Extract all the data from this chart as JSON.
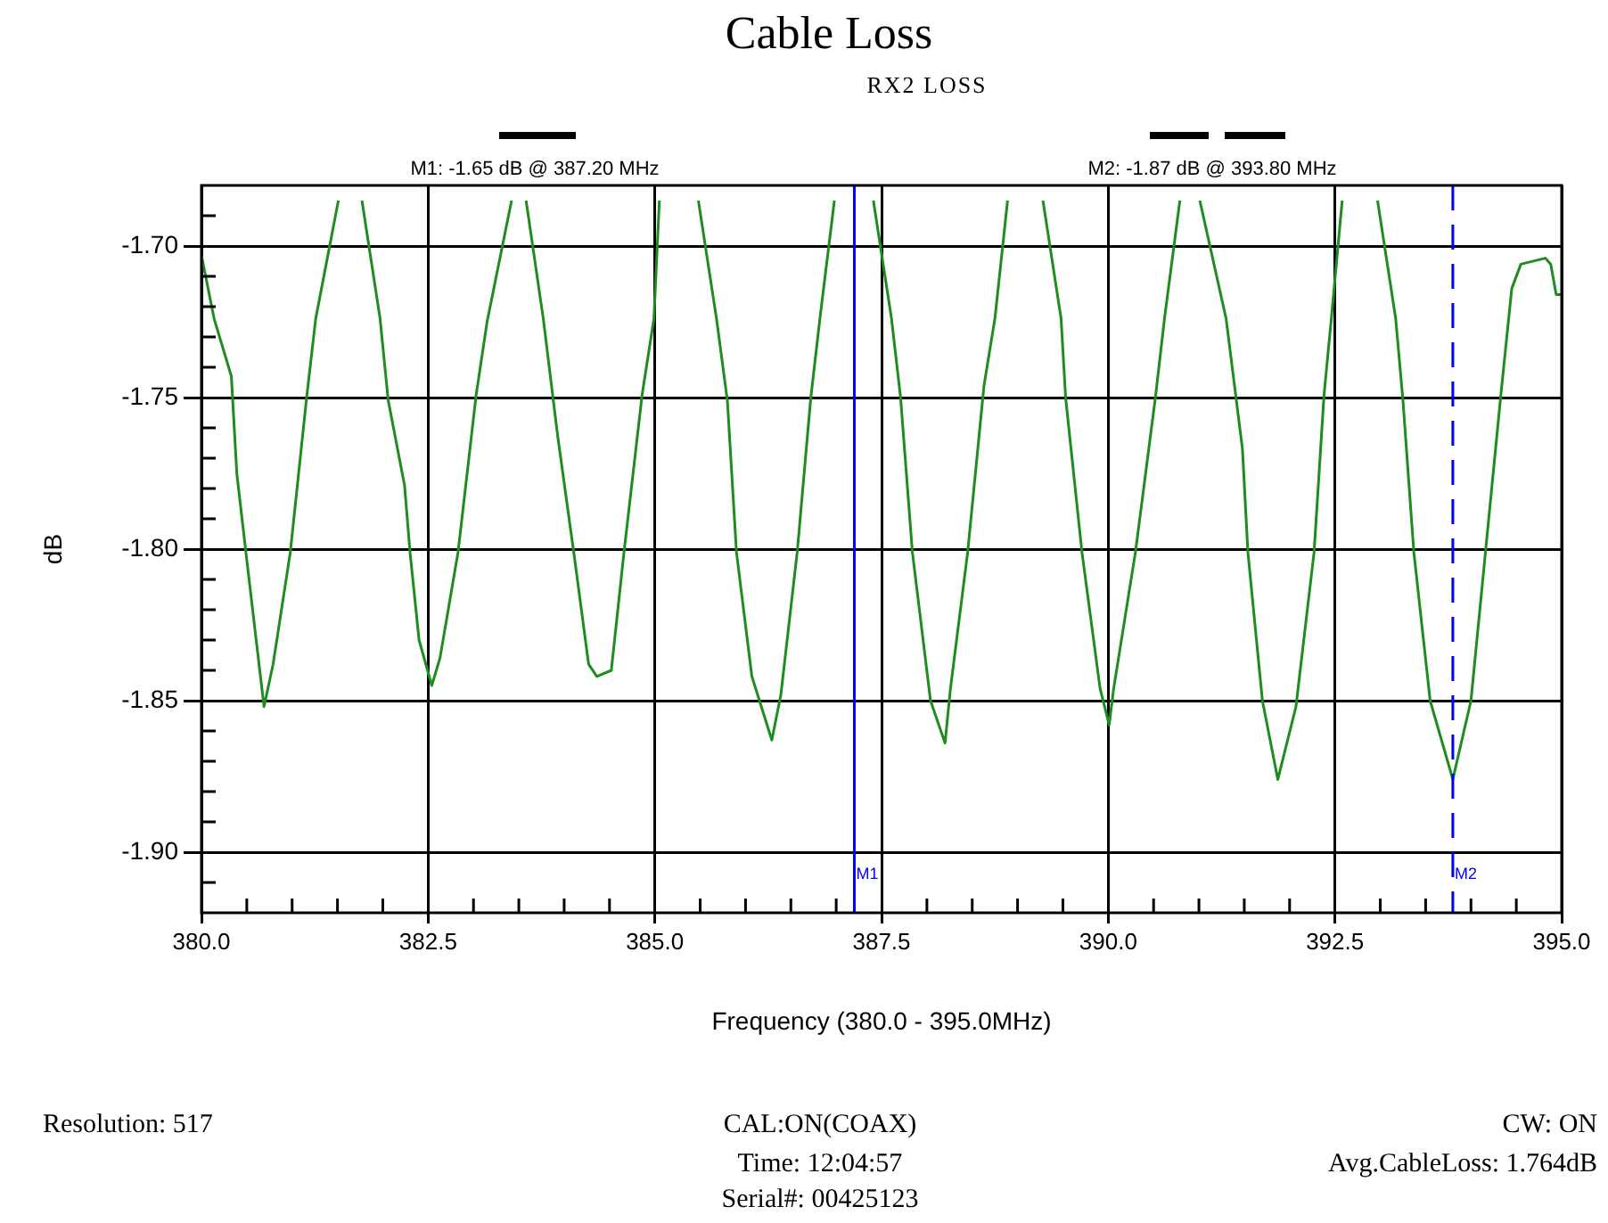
{
  "chart_data": {
    "type": "line",
    "title": "Cable Loss",
    "subtitle": "RX2 LOSS",
    "xlabel": "Frequency (380.0 - 395.0MHz)",
    "ylabel": "dB",
    "xlim": [
      380,
      395
    ],
    "xticks": [
      {
        "value": 380,
        "label": "380.0"
      },
      {
        "value": 380.5,
        "label": null
      },
      {
        "value": 381,
        "label": null
      },
      {
        "value": 381.5,
        "label": null
      },
      {
        "value": 382,
        "label": null
      },
      {
        "value": 382.5,
        "label": "382.5"
      },
      {
        "value": 383,
        "label": null
      },
      {
        "value": 383.5,
        "label": null
      },
      {
        "value": 384,
        "label": null
      },
      {
        "value": 384.5,
        "label": null
      },
      {
        "value": 385,
        "label": "385.0"
      },
      {
        "value": 385.5,
        "label": null
      },
      {
        "value": 386,
        "label": null
      },
      {
        "value": 386.5,
        "label": null
      },
      {
        "value": 387,
        "label": null
      },
      {
        "value": 387.5,
        "label": "387.5"
      },
      {
        "value": 388,
        "label": null
      },
      {
        "value": 388.5,
        "label": null
      },
      {
        "value": 389,
        "label": null
      },
      {
        "value": 389.5,
        "label": null
      },
      {
        "value": 390,
        "label": "390.0"
      },
      {
        "value": 390.5,
        "label": null
      },
      {
        "value": 391,
        "label": null
      },
      {
        "value": 391.5,
        "label": null
      },
      {
        "value": 392,
        "label": null
      },
      {
        "value": 392.5,
        "label": "392.5"
      },
      {
        "value": 393,
        "label": null
      },
      {
        "value": 393.5,
        "label": null
      },
      {
        "value": 394,
        "label": null
      },
      {
        "value": 394.5,
        "label": null
      },
      {
        "value": 395,
        "label": "395.0"
      }
    ],
    "ylim": [
      -1.92,
      -1.68
    ],
    "yticks": [
      {
        "value": -1.69,
        "label": null
      },
      {
        "value": -1.7,
        "label": "-1.70"
      },
      {
        "value": -1.71,
        "label": null
      },
      {
        "value": -1.72,
        "label": null
      },
      {
        "value": -1.73,
        "label": null
      },
      {
        "value": -1.74,
        "label": null
      },
      {
        "value": -1.75,
        "label": "-1.75"
      },
      {
        "value": -1.76,
        "label": null
      },
      {
        "value": -1.77,
        "label": null
      },
      {
        "value": -1.78,
        "label": null
      },
      {
        "value": -1.79,
        "label": null
      },
      {
        "value": -1.8,
        "label": "-1.80"
      },
      {
        "value": -1.81,
        "label": null
      },
      {
        "value": -1.82,
        "label": null
      },
      {
        "value": -1.83,
        "label": null
      },
      {
        "value": -1.84,
        "label": null
      },
      {
        "value": -1.85,
        "label": "-1.85"
      },
      {
        "value": -1.86,
        "label": null
      },
      {
        "value": -1.87,
        "label": null
      },
      {
        "value": -1.88,
        "label": null
      },
      {
        "value": -1.89,
        "label": null
      },
      {
        "value": -1.9,
        "label": "-1.90"
      },
      {
        "value": -1.91,
        "label": null
      }
    ],
    "grid": true,
    "legend": false,
    "marker": "none",
    "line_style": "solid",
    "series": [
      {
        "color": "#1e8c1e",
        "x": [
          380.0,
          380.14,
          380.33,
          380.39,
          380.49,
          380.69,
          380.79,
          380.98,
          381.16,
          381.26,
          381.51,
          381.64,
          381.77,
          381.97,
          382.06,
          382.24,
          382.3,
          382.4,
          382.54,
          382.63,
          382.83,
          383.03,
          383.15,
          383.42,
          383.5,
          383.58,
          383.77,
          383.93,
          384.11,
          384.27,
          384.36,
          384.52,
          384.66,
          384.86,
          384.99,
          385.05,
          385.27,
          385.48,
          385.68,
          385.8,
          385.9,
          386.07,
          386.29,
          386.39,
          386.57,
          386.72,
          386.82,
          386.98,
          387.2,
          387.41,
          387.61,
          387.71,
          387.84,
          388.04,
          388.2,
          388.26,
          388.45,
          388.63,
          388.75,
          388.89,
          389.08,
          389.28,
          389.48,
          389.53,
          389.71,
          389.91,
          390.01,
          390.06,
          390.3,
          390.52,
          390.62,
          390.79,
          390.9,
          391.01,
          391.3,
          391.48,
          391.54,
          391.7,
          391.87,
          392.07,
          392.27,
          392.38,
          392.46,
          392.58,
          392.78,
          392.97,
          393.17,
          393.25,
          393.37,
          393.55,
          393.8,
          394.0,
          394.16,
          394.33,
          394.45,
          394.55,
          394.82,
          394.88,
          394.94,
          395.0
        ],
        "values": [
          -1.703,
          -1.724,
          -1.743,
          -1.775,
          -1.801,
          -1.852,
          -1.838,
          -1.801,
          -1.75,
          -1.724,
          -1.685,
          null,
          -1.685,
          -1.724,
          -1.751,
          -1.779,
          -1.801,
          -1.83,
          -1.845,
          -1.836,
          -1.801,
          -1.749,
          -1.725,
          -1.685,
          null,
          -1.685,
          -1.724,
          -1.763,
          -1.802,
          -1.838,
          -1.842,
          -1.84,
          -1.801,
          -1.749,
          -1.724,
          -1.685,
          null,
          -1.685,
          -1.724,
          -1.751,
          -1.801,
          -1.842,
          -1.863,
          -1.848,
          -1.801,
          -1.75,
          -1.724,
          -1.685,
          null,
          -1.685,
          -1.724,
          -1.75,
          -1.801,
          -1.85,
          -1.864,
          -1.846,
          -1.801,
          -1.746,
          -1.724,
          -1.685,
          null,
          -1.685,
          -1.724,
          -1.75,
          -1.801,
          -1.846,
          -1.858,
          -1.846,
          -1.801,
          -1.75,
          -1.724,
          -1.685,
          null,
          -1.685,
          -1.724,
          -1.767,
          -1.801,
          -1.85,
          -1.876,
          -1.852,
          -1.801,
          -1.749,
          -1.724,
          -1.685,
          null,
          -1.685,
          -1.724,
          -1.751,
          -1.801,
          -1.85,
          -1.876,
          -1.85,
          -1.801,
          -1.749,
          -1.714,
          -1.706,
          -1.704,
          -1.706,
          -1.716,
          -1.716
        ]
      }
    ],
    "ref_lines": [
      {
        "axis": "x",
        "value": 387.2,
        "label": "M1",
        "color": "#0000ff",
        "line_style": "solid"
      },
      {
        "axis": "x",
        "value": 393.8,
        "label": "M2",
        "color": "#0000ff",
        "line_style": "dashed"
      }
    ],
    "annotations": [
      "M1: -1.65 dB @ 387.20 MHz",
      "M2: -1.87 dB @ 393.80 MHz",
      "Resolution: 517",
      "CAL:ON(COAX)",
      "Time: 12:04:57",
      "Serial#: 00425123",
      "CW: ON",
      "Avg.CableLoss: 1.764dB"
    ]
  }
}
